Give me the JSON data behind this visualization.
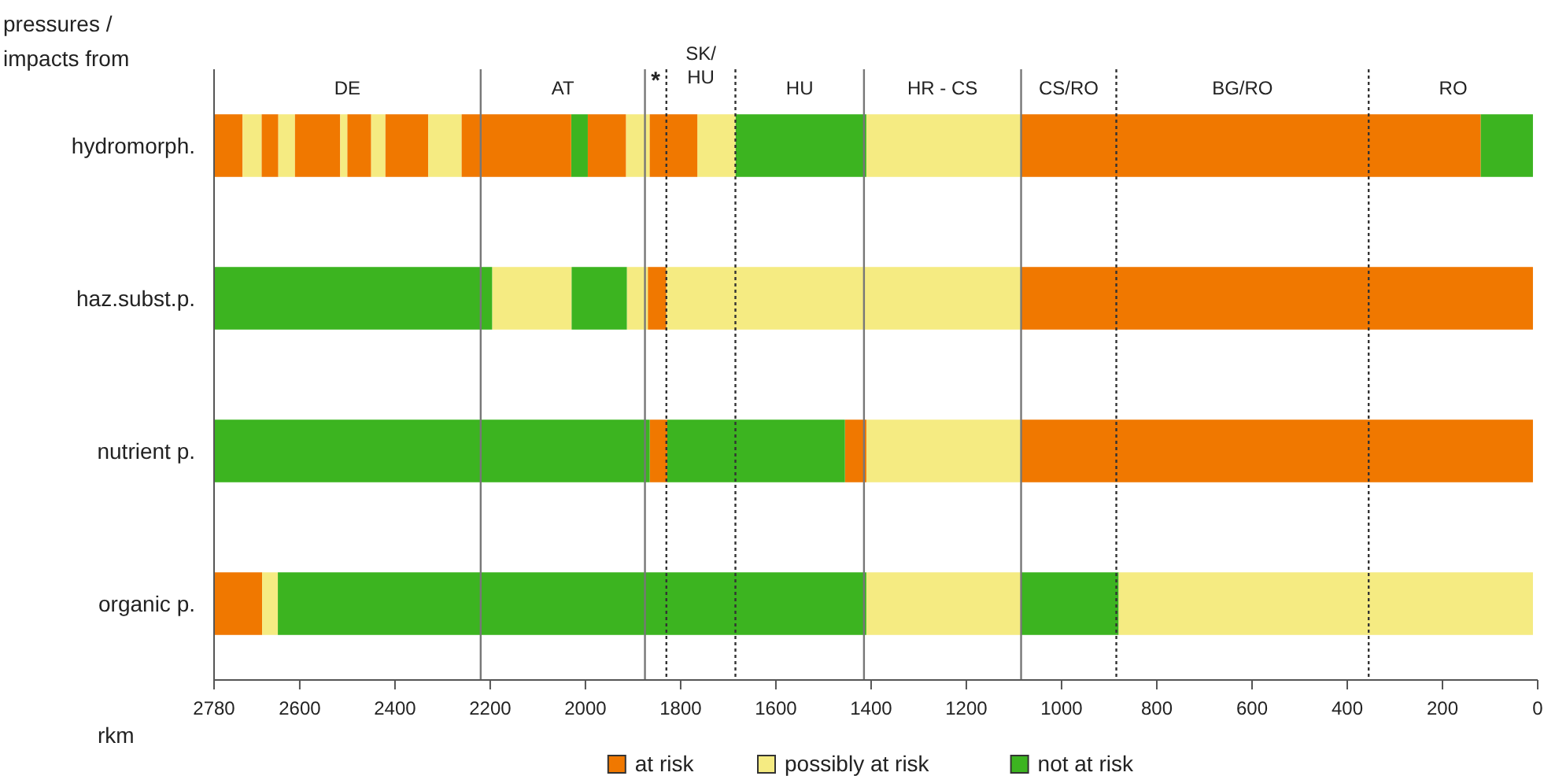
{
  "chart_data": {
    "type": "bar",
    "orientation": "horizontal",
    "ylabel": "pressures / impacts from",
    "xlabel": "rkm",
    "categories": [
      "hydromorph.",
      "haz.subst.p.",
      "nutrient p.",
      "organic p."
    ],
    "xlim": [
      2780,
      0
    ],
    "xticks": [
      2780,
      2600,
      2400,
      2200,
      2000,
      1800,
      1600,
      1400,
      1200,
      1000,
      800,
      600,
      400,
      200,
      0
    ],
    "legend": "bottom",
    "series": [
      {
        "name": "at risk",
        "color": "#f07800",
        "base": [
          2720,
          1830,
          1828,
          2679
        ],
        "values": [
          60,
          39,
          37,
          101
        ]
      },
      {
        "name": "possibly at risk",
        "color": "#f5eb82",
        "base": [
          2680,
          2029,
          1085,
          2646
        ],
        "values": [
          40,
          167,
          325,
          33
        ]
      },
      {
        "name": "not at risk",
        "color": "#3cb420",
        "base": [
          1995,
          2196,
          1865,
          1410
        ],
        "values": [
          35,
          584,
          915,
          1236
        ]
      },
      {
        "color": "#f07800",
        "base": [
          2645,
          10,
          1410,
          null
        ],
        "values": [
          35,
          1075,
          45,
          null
        ]
      },
      {
        "color": "#f5eb82",
        "base": [
          2610,
          1869,
          null,
          1085
        ],
        "values": [
          35,
          44,
          null,
          325
        ]
      },
      {
        "color": "#3cb420",
        "base": [
          1410,
          1913,
          1455,
          880
        ],
        "values": [
          275,
          116,
          373,
          205
        ]
      },
      {
        "color": "#f07800",
        "base": [
          2515,
          null,
          10,
          null
        ],
        "values": [
          95,
          null,
          1075,
          null
        ]
      },
      {
        "color": "#f5eb82",
        "base": [
          2500,
          1085,
          null,
          10
        ],
        "values": [
          15,
          745,
          null,
          870
        ]
      },
      {
        "color": "#3cb420",
        "base": [
          10,
          null,
          null,
          null
        ],
        "values": [
          110,
          null,
          null,
          null
        ]
      },
      {
        "color": "#f07800",
        "base": [
          2450,
          null,
          null,
          null
        ],
        "values": [
          50,
          null,
          null,
          null
        ]
      },
      {
        "color": "#f5eb82",
        "base": [
          2420,
          null,
          null,
          null
        ],
        "values": [
          30,
          null,
          null,
          null
        ]
      },
      {
        "color": "#f07800",
        "base": [
          2330,
          null,
          null,
          null
        ],
        "values": [
          90,
          null,
          null,
          null
        ]
      },
      {
        "color": "#f5eb82",
        "base": [
          2260,
          null,
          null,
          null
        ],
        "values": [
          70,
          null,
          null,
          null
        ]
      },
      {
        "color": "#f07800",
        "base": [
          2030,
          null,
          null,
          null
        ],
        "values": [
          230,
          null,
          null,
          null
        ]
      },
      {
        "color": "#f5eb82",
        "base": [
          1865,
          null,
          null,
          null
        ],
        "values": [
          50,
          null,
          null,
          null
        ]
      },
      {
        "color": "#f07800",
        "base": [
          1915,
          null,
          null,
          null
        ],
        "values": [
          80,
          null,
          null,
          null
        ]
      },
      {
        "color": "#f5eb82",
        "base": [
          1685,
          null,
          null,
          null
        ],
        "values": [
          80,
          null,
          null,
          null
        ]
      },
      {
        "color": "#f07800",
        "base": [
          1765,
          null,
          null,
          null
        ],
        "values": [
          100,
          null,
          null,
          null
        ]
      },
      {
        "color": "#f5eb82",
        "base": [
          1085,
          null,
          null,
          null
        ],
        "values": [
          325,
          null,
          null,
          null
        ]
      },
      {
        "color": "#f07800",
        "base": [
          120,
          null,
          null,
          null
        ],
        "values": [
          965,
          null,
          null,
          null
        ]
      }
    ],
    "ref_lines": [
      {
        "axis": "x",
        "value": 2220,
        "line_style": "solid"
      },
      {
        "axis": "x",
        "value": 1875,
        "line_style": "solid"
      },
      {
        "axis": "x",
        "value": 1830,
        "line_style": "dotted"
      },
      {
        "axis": "x",
        "value": 1685,
        "line_style": "dotted"
      },
      {
        "axis": "x",
        "value": 1415,
        "line_style": "solid"
      },
      {
        "axis": "x",
        "value": 1085,
        "line_style": "solid"
      },
      {
        "axis": "x",
        "value": 885,
        "line_style": "dotted"
      },
      {
        "axis": "x",
        "value": 355,
        "line_style": "dotted"
      }
    ],
    "annotations": [
      "DE",
      "AT",
      "*",
      "SK/HU",
      "HU",
      "HR - CS",
      "CS/RO",
      "BG/RO",
      "RO"
    ]
  }
}
